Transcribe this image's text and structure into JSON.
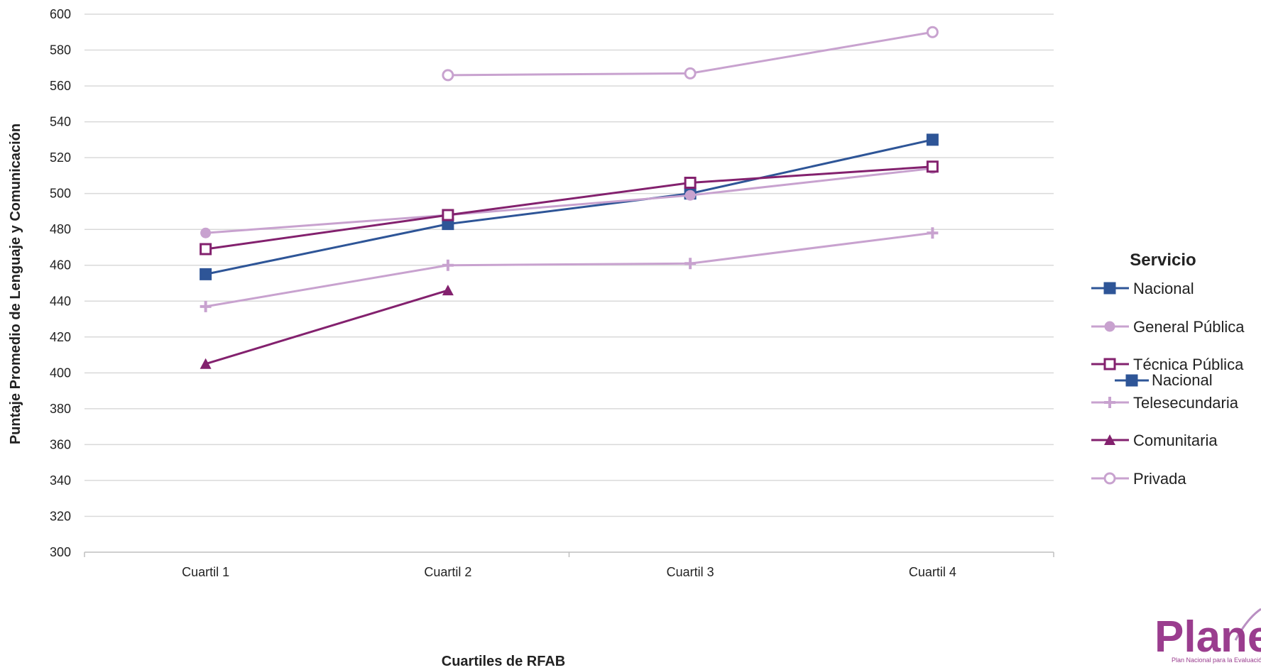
{
  "chart_data": {
    "type": "line",
    "title": "",
    "xlabel": "Cuartiles de RFAB",
    "ylabel": "Puntaje Promedio de Lenguaje y Comunicación",
    "ylim": [
      300,
      600
    ],
    "y_ticks": [
      300,
      320,
      340,
      360,
      380,
      400,
      420,
      440,
      460,
      480,
      500,
      520,
      540,
      560,
      580,
      600
    ],
    "categories": [
      "Cuartil 1",
      "Cuartil 2",
      "Cuartil 3",
      "Cuartil 4"
    ],
    "grid": true,
    "legend": {
      "title": "Servicio",
      "position": "right"
    },
    "series": [
      {
        "name": "Nacional",
        "values": [
          455,
          483,
          500,
          530
        ],
        "color": "#2e5597",
        "marker": "square-filled"
      },
      {
        "name": "General Pública",
        "values": [
          478,
          488,
          499,
          514
        ],
        "color": "#c8a2cf",
        "marker": "circle-filled"
      },
      {
        "name": "Técnica Pública",
        "values": [
          469,
          488,
          506,
          515
        ],
        "color": "#83216e",
        "marker": "square-open"
      },
      {
        "name": "Telesecundaria",
        "values": [
          437,
          460,
          461,
          478
        ],
        "color": "#c8a2cf",
        "marker": "plus"
      },
      {
        "name": "Comunitaria",
        "values": [
          405,
          446,
          null,
          null
        ],
        "color": "#83216e",
        "marker": "triangle-filled"
      },
      {
        "name": "Privada",
        "values": [
          null,
          566,
          567,
          590
        ],
        "color": "#c8a2cf",
        "marker": "circle-open"
      }
    ],
    "legend_overlap_label": "Nacional"
  },
  "logo": {
    "text": "Planea",
    "subtitle": "Plan Nacional para la Evaluación de los Aprendizajes",
    "color": "#9a3d8e"
  }
}
